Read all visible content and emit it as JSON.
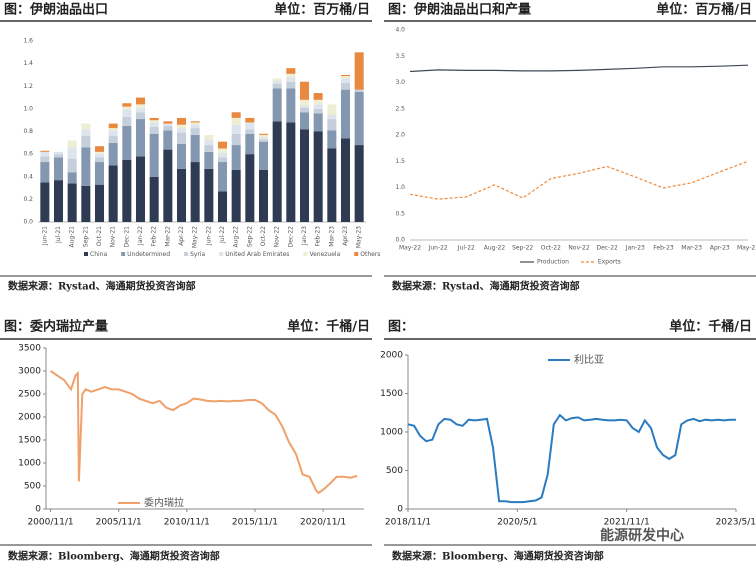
{
  "chart_data": [
    {
      "type": "bar",
      "title": "图：伊朗油品出口",
      "unit": "单位：百万桶/日",
      "source": "数据来源：Rystad、海通期货投资咨询部",
      "categories": [
        "Jun-21",
        "Jul-21",
        "Aug-21",
        "Sep-21",
        "Oct-21",
        "Nov-21",
        "Dec-21",
        "Jan-22",
        "Feb-22",
        "Mar-22",
        "Apr-22",
        "May-22",
        "Jun-22",
        "Jul-22",
        "Aug-22",
        "Sep-22",
        "Oct-22",
        "Nov-22",
        "Dec-22",
        "Jan-23",
        "Feb-23",
        "Mar-23",
        "Apr-23",
        "May-23"
      ],
      "series": [
        {
          "name": "China",
          "color": "#2e3b52",
          "values": [
            0.35,
            0.37,
            0.34,
            0.32,
            0.33,
            0.5,
            0.55,
            0.58,
            0.4,
            0.64,
            0.47,
            0.53,
            0.47,
            0.27,
            0.46,
            0.6,
            0.46,
            0.89,
            0.88,
            0.82,
            0.8,
            0.65,
            0.74,
            0.68
          ]
        },
        {
          "name": "Undetermined",
          "color": "#8497b0",
          "values": [
            0.18,
            0.2,
            0.1,
            0.34,
            0.2,
            0.2,
            0.3,
            0.33,
            0.38,
            0.17,
            0.22,
            0.24,
            0.15,
            0.26,
            0.22,
            0.18,
            0.25,
            0.29,
            0.3,
            0.15,
            0.16,
            0.16,
            0.43,
            0.47
          ]
        },
        {
          "name": "Syria",
          "color": "#c5cfdc",
          "values": [
            0.05,
            0.03,
            0.12,
            0.1,
            0.04,
            0.06,
            0.08,
            0.06,
            0.06,
            0.04,
            0.1,
            0.06,
            0.06,
            0.04,
            0.1,
            0.04,
            0.02,
            0.04,
            0.06,
            0.04,
            0.04,
            0.1,
            0.06,
            0.02
          ]
        },
        {
          "name": "United Arab Emirates",
          "color": "#dde4ec",
          "values": [
            0.04,
            0.02,
            0.1,
            0.06,
            0.03,
            0.05,
            0.06,
            0.04,
            0.04,
            0.02,
            0.04,
            0.03,
            0.05,
            0.04,
            0.08,
            0.06,
            0.02,
            0.03,
            0.04,
            0.02,
            0.04,
            0.04,
            0.04,
            0
          ]
        },
        {
          "name": "Venezuela",
          "color": "#eeeed2",
          "values": [
            0,
            0,
            0.06,
            0.05,
            0.02,
            0.02,
            0.03,
            0.03,
            0.02,
            0,
            0.03,
            0.02,
            0.04,
            0.04,
            0.06,
            0,
            0.02,
            0.02,
            0.03,
            0.05,
            0.04,
            0.09,
            0.02,
            0
          ]
        },
        {
          "name": "Others",
          "color": "#e8893f",
          "values": [
            0.01,
            0,
            0,
            0,
            0.05,
            0.04,
            0.03,
            0.06,
            0.02,
            0.02,
            0.06,
            0.01,
            0,
            0.06,
            0.05,
            0.04,
            0.01,
            0,
            0.05,
            0.16,
            0.06,
            0,
            0.01,
            0.33
          ]
        }
      ],
      "ylim": [
        0,
        1.6
      ],
      "yticks": [
        {
          "value": 0,
          "label": "0.0"
        },
        0.2,
        0.4,
        0.6,
        0.8,
        {
          "value": 1,
          "label": "1.0"
        },
        1.2,
        1.4,
        1.6
      ]
    },
    {
      "type": "line",
      "title": "图：伊朗油品出口和产量",
      "unit": "单位：百万桶/日",
      "source": "数据来源：Rystad、海通期货投资咨询部",
      "categories": [
        "May-22",
        "Jun-22",
        "Jul-22",
        "Aug-22",
        "Sep-22",
        "Oct-22",
        "Nov-22",
        "Dec-22",
        "Jan-23",
        "Feb-23",
        "Mar-23",
        "Apr-23",
        "May-23"
      ],
      "series": [
        {
          "name": "Production",
          "color": "#404a56",
          "dashed": false,
          "values": [
            3.21,
            3.24,
            3.23,
            3.23,
            3.22,
            3.22,
            3.23,
            3.25,
            3.27,
            3.3,
            3.3,
            3.31,
            3.33
          ]
        },
        {
          "name": "Exports",
          "color": "#ee8a3c",
          "dashed": true,
          "values": [
            0.87,
            0.78,
            0.82,
            1.05,
            0.8,
            1.17,
            1.27,
            1.4,
            1.2,
            0.99,
            1.09,
            1.3,
            1.5
          ]
        }
      ],
      "ylim": [
        0,
        4
      ],
      "yticks": [
        {
          "value": 0,
          "label": "0.0"
        },
        0.5,
        {
          "value": 1,
          "label": "1.0"
        },
        1.5,
        {
          "value": 2,
          "label": "2.0"
        },
        2.5,
        {
          "value": 3,
          "label": "3.0"
        },
        3.5,
        {
          "value": 4,
          "label": "4.0"
        }
      ]
    },
    {
      "type": "line",
      "title": "图：委内瑞拉产量",
      "unit": "单位：千桶/日",
      "source": "数据来源：Bloomberg、海通期货投资咨询部",
      "x": [
        "2000/11/1",
        "2001/5/1",
        "2001/11/1",
        "2002/5/1",
        "2002/9/1",
        "2002/11/1",
        "2002/12/1",
        "2003/3/1",
        "2003/6/1",
        "2003/11/1",
        "2004/5/1",
        "2004/11/1",
        "2005/5/1",
        "2005/11/1",
        "2006/5/1",
        "2006/11/1",
        "2007/5/1",
        "2007/11/1",
        "2008/5/1",
        "2008/11/1",
        "2009/5/1",
        "2009/11/1",
        "2010/5/1",
        "2010/11/1",
        "2011/5/1",
        "2011/11/1",
        "2012/5/1",
        "2012/11/1",
        "2013/5/1",
        "2013/11/1",
        "2014/5/1",
        "2014/11/1",
        "2015/5/1",
        "2015/11/1",
        "2016/5/1",
        "2016/11/1",
        "2017/5/1",
        "2017/11/1",
        "2018/5/1",
        "2018/11/1",
        "2019/3/1",
        "2019/5/1",
        "2019/11/1",
        "2020/5/1",
        "2020/7/1",
        "2020/11/1",
        "2021/5/1",
        "2021/11/1",
        "2022/5/1",
        "2022/11/1",
        "2023/5/1"
      ],
      "series": [
        {
          "name": "委内瑞拉",
          "color": "#f0a06a",
          "values": [
            3000,
            2900,
            2800,
            2600,
            2900,
            2950,
            600,
            2500,
            2600,
            2550,
            2600,
            2650,
            2600,
            2600,
            2550,
            2500,
            2400,
            2350,
            2300,
            2350,
            2200,
            2150,
            2250,
            2300,
            2400,
            2380,
            2350,
            2340,
            2350,
            2340,
            2350,
            2350,
            2370,
            2370,
            2300,
            2150,
            2050,
            1800,
            1450,
            1200,
            900,
            750,
            700,
            400,
            350,
            420,
            550,
            700,
            700,
            680,
            720
          ]
        }
      ],
      "xlim": [
        "2000/7/1",
        "2023/11/1"
      ],
      "xticks": [
        "2000/11/1",
        "2005/11/1",
        "2010/11/1",
        "2015/11/1",
        "2020/11/1"
      ],
      "ylim": [
        0,
        3500
      ],
      "yticks": [
        0,
        500,
        1000,
        1500,
        2000,
        2500,
        3000,
        3500
      ]
    },
    {
      "type": "line",
      "title": "图：",
      "unit": "单位：千桶/日",
      "source": "数据来源：Bloomberg、海通期货投资咨询部",
      "x": [
        "2018/11/1",
        "2018/12/1",
        "2019/1/1",
        "2019/2/1",
        "2019/3/1",
        "2019/4/1",
        "2019/5/1",
        "2019/6/1",
        "2019/7/1",
        "2019/8/1",
        "2019/9/1",
        "2019/10/1",
        "2019/11/1",
        "2019/12/1",
        "2020/1/1",
        "2020/2/1",
        "2020/3/1",
        "2020/4/1",
        "2020/5/1",
        "2020/6/1",
        "2020/7/1",
        "2020/8/1",
        "2020/9/1",
        "2020/10/1",
        "2020/11/1",
        "2020/12/1",
        "2021/1/1",
        "2021/2/1",
        "2021/3/1",
        "2021/4/1",
        "2021/5/1",
        "2021/6/1",
        "2021/7/1",
        "2021/8/1",
        "2021/9/1",
        "2021/10/1",
        "2021/11/1",
        "2021/12/1",
        "2022/1/1",
        "2022/2/1",
        "2022/3/1",
        "2022/4/1",
        "2022/5/1",
        "2022/6/1",
        "2022/7/1",
        "2022/8/1",
        "2022/9/1",
        "2022/10/1",
        "2022/11/1",
        "2022/12/1",
        "2023/1/1",
        "2023/2/1",
        "2023/3/1",
        "2023/4/1",
        "2023/5/1"
      ],
      "series": [
        {
          "name": "利比亚",
          "color": "#2a7bbf",
          "values": [
            1100,
            1080,
            950,
            880,
            900,
            1100,
            1170,
            1160,
            1100,
            1080,
            1160,
            1150,
            1160,
            1170,
            800,
            100,
            100,
            90,
            90,
            90,
            100,
            110,
            150,
            450,
            1100,
            1220,
            1150,
            1180,
            1190,
            1150,
            1160,
            1170,
            1160,
            1150,
            1150,
            1160,
            1150,
            1050,
            1000,
            1150,
            1050,
            800,
            700,
            650,
            700,
            1100,
            1150,
            1170,
            1140,
            1160,
            1150,
            1160,
            1150,
            1160,
            1160
          ]
        }
      ],
      "xlim": [
        "2018/11/1",
        "2023/5/1"
      ],
      "xticks": [
        "2018/11/1",
        "2020/5/1",
        "2021/11/1",
        "2023/5/1"
      ],
      "ylim": [
        0,
        2000
      ],
      "yticks": [
        0,
        500,
        1000,
        1500,
        2000
      ]
    }
  ],
  "watermark": "能源研发中心"
}
